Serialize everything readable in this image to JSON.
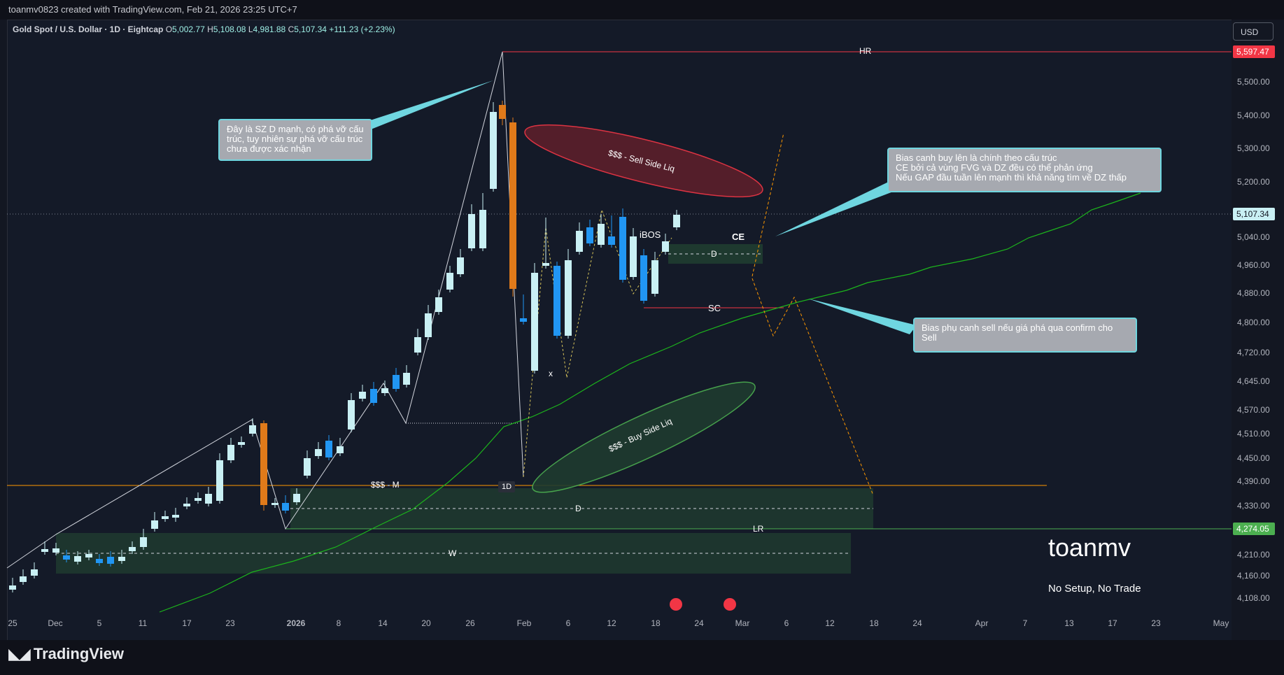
{
  "header": {
    "attribution": "toanmv0823 created with TradingView.com, Feb 21, 2026 23:25 UTC+7"
  },
  "symbol": {
    "name": "Gold Spot / U.S. Dollar · 1D · Eightcap",
    "open_label": "O",
    "open": "5,002.77",
    "high_label": "H",
    "high": "5,108.08",
    "low_label": "L",
    "low": "4,981.88",
    "close_label": "C",
    "close": "5,107.34",
    "change": "+111.23 (+2.23%)"
  },
  "currency_button": "USD",
  "price_axis": {
    "ticks": [
      "5,500.00",
      "5,400.00",
      "5,300.00",
      "5,200.00",
      "5,040.00",
      "4,960.00",
      "4,880.00",
      "4,800.00",
      "4,720.00",
      "4,645.00",
      "4,570.00",
      "4,510.00",
      "4,450.00",
      "4,390.00",
      "4,330.00",
      "4,210.00",
      "4,160.00",
      "4,108.00"
    ],
    "hr_price": "5,597.47",
    "last_price": "5,107.34",
    "lr_price": "4,274.05"
  },
  "time_axis": {
    "ticks": [
      "25",
      "Dec",
      "5",
      "11",
      "17",
      "23",
      "2026",
      "8",
      "14",
      "20",
      "26",
      "Feb",
      "6",
      "12",
      "18",
      "24",
      "Mar",
      "6",
      "12",
      "18",
      "24",
      "Apr",
      "7",
      "13",
      "17",
      "23",
      "May"
    ]
  },
  "annotations": {
    "hr": "HR",
    "lr": "LR",
    "sc": "SC",
    "ce": "CE",
    "ibos": "iBOS",
    "d_small": "D",
    "d_large": "D",
    "w": "W",
    "sss_m": "$$$ - M",
    "x_mark": "x",
    "tf_badge": "1D",
    "sell_side": "$$$ - Sell Side Liq",
    "buy_side": "$$$ - Buy Side Liq"
  },
  "notes": {
    "sz": "Đây là SZ D mạnh, có phá vỡ cấu trúc, tuy nhiên sự phá vỡ cấu trúc chưa được xác nhận",
    "bias_buy_1": "Bias canh buy lên là chính theo cấu trúc",
    "bias_buy_2": "CE bởi cả vùng FVG và DZ đều có thể phản ứng",
    "bias_buy_3": "Nếu GAP đầu tuần lên mạnh thì khả năng tìm về DZ thấp",
    "bias_sell": "Bias phụ canh sell nếu giá phá qua confirm cho Sell"
  },
  "branding": {
    "watermark": "toanmv",
    "tagline": "No Setup, No Trade",
    "logo": "TradingView"
  },
  "colors": {
    "bull": "#b2ebf2",
    "bear": "#2962ff",
    "hr_line": "#f23645",
    "lr_line": "#4caf50",
    "zone": "#1f3b2f",
    "orange": "#ff9800"
  }
}
